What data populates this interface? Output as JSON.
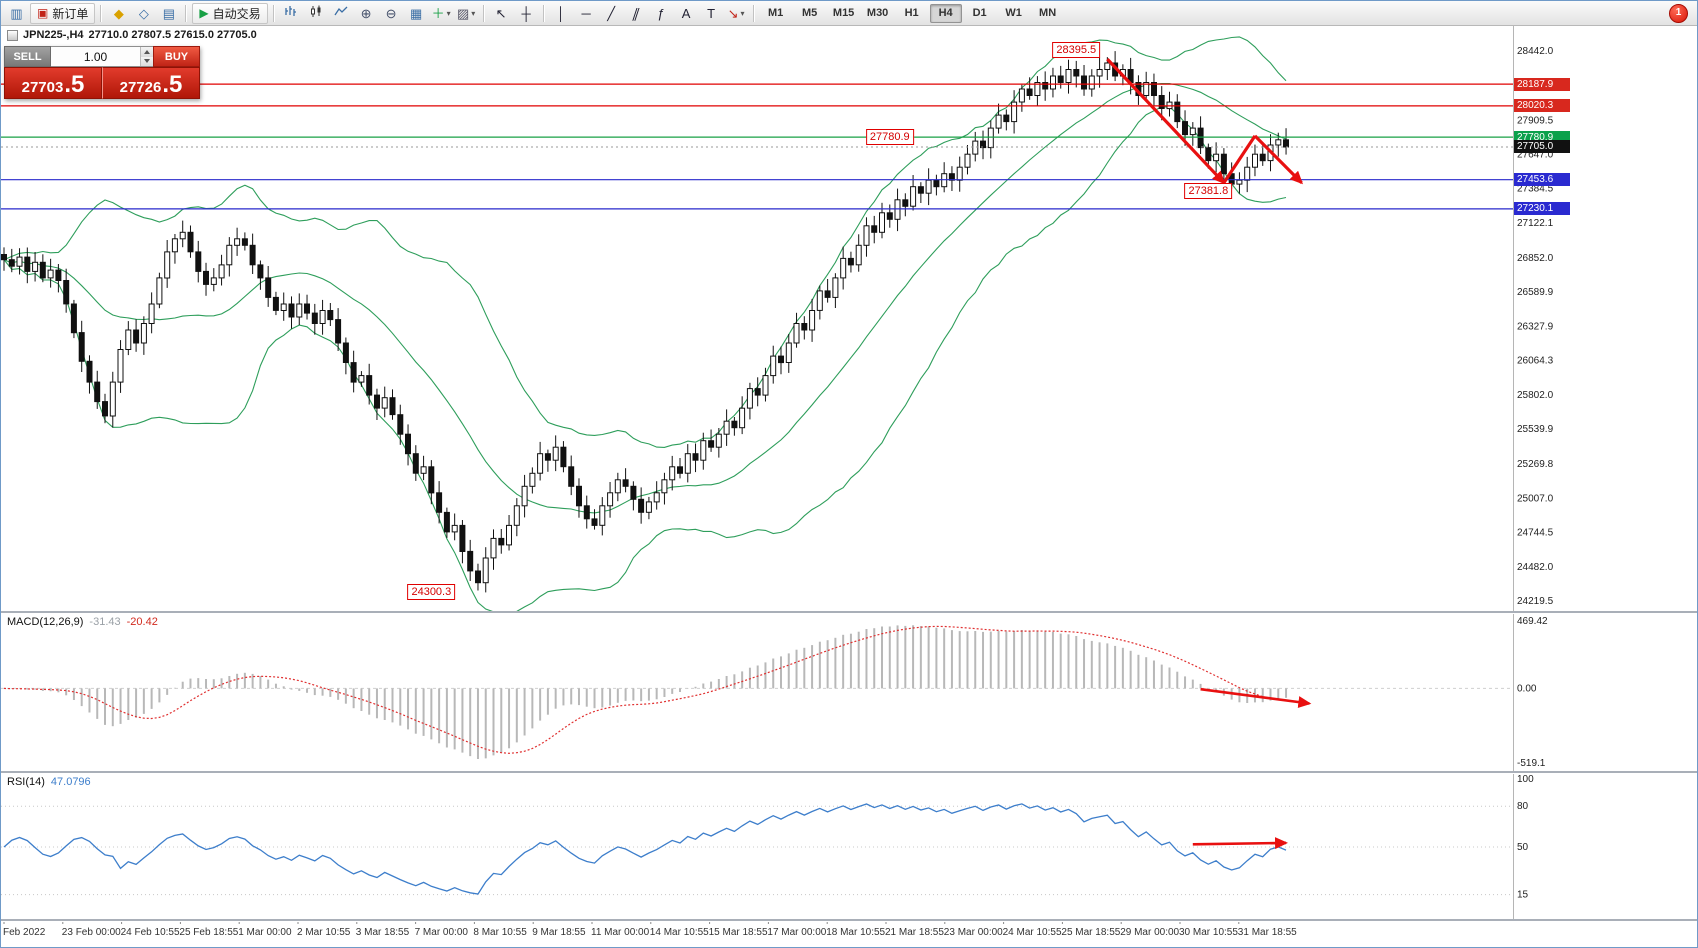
{
  "toolbar": {
    "groups": [
      {
        "name": "file",
        "items": [
          {
            "name": "new-chart",
            "glyph": "▥",
            "color": "#3a6ea5"
          },
          {
            "name": "new-order",
            "label": "新订单",
            "glyph": "▣",
            "color": "#c22318"
          }
        ]
      },
      {
        "name": "panels",
        "items": [
          {
            "name": "market-watch",
            "glyph": "◆",
            "color": "#d9a100"
          },
          {
            "name": "navigator",
            "glyph": "◇",
            "color": "#3a6ea5"
          },
          {
            "name": "terminal",
            "glyph": "▤",
            "color": "#3a6ea5"
          }
        ]
      },
      {
        "name": "autotrade",
        "items": [
          {
            "name": "autotrade",
            "label": "自动交易",
            "glyph": "▶",
            "color": "#18a045"
          }
        ]
      },
      {
        "name": "chart-tools",
        "items": [
          {
            "name": "bar-chart",
            "svg": "bars"
          },
          {
            "name": "candlestick-chart",
            "svg": "candles"
          },
          {
            "name": "line-chart",
            "svg": "line"
          },
          {
            "name": "zoom-in",
            "glyph": "⊕",
            "color": "#44506a"
          },
          {
            "name": "zoom-out",
            "glyph": "⊖",
            "color": "#44506a"
          },
          {
            "name": "tile-windows",
            "glyph": "▦",
            "color": "#3a6ea5"
          },
          {
            "name": "indicators",
            "glyph": "＋",
            "color": "#18a045",
            "caret": true
          },
          {
            "name": "templates",
            "glyph": "▨",
            "color": "#556",
            "caret": true
          }
        ]
      },
      {
        "name": "cursor-tools",
        "items": [
          {
            "name": "cursor",
            "glyph": "↖",
            "color": "#223"
          },
          {
            "name": "crosshair",
            "glyph": "┼",
            "color": "#223"
          }
        ]
      },
      {
        "name": "line-tools",
        "items": [
          {
            "name": "vertical-line",
            "glyph": "│",
            "color": "#223"
          },
          {
            "name": "horizontal-line",
            "glyph": "─",
            "color": "#223"
          },
          {
            "name": "trendline",
            "glyph": "╱",
            "color": "#223"
          },
          {
            "name": "equidistant-channel",
            "glyph": "∥",
            "color": "#223",
            "slant": true
          },
          {
            "name": "fibonacci",
            "glyph": "ƒ",
            "color": "#223"
          },
          {
            "name": "text",
            "glyph": "A",
            "color": "#223"
          },
          {
            "name": "label",
            "glyph": "T",
            "color": "#223"
          },
          {
            "name": "arrow-tool",
            "glyph": "↘",
            "color": "#c22318",
            "caret": true
          }
        ]
      },
      {
        "name": "timeframes",
        "type": "timeframes"
      }
    ],
    "timeframes": [
      "M1",
      "M5",
      "M15",
      "M30",
      "H1",
      "H4",
      "D1",
      "W1",
      "MN"
    ],
    "active_timeframe": "H4",
    "notification_badge": "1"
  },
  "trade_panel": {
    "sell_label": "SELL",
    "buy_label": "BUY",
    "volume": "1.00",
    "sell_price_main": "27703",
    "sell_price_frac": ".5",
    "buy_price_main": "27726",
    "buy_price_frac": ".5"
  },
  "chart_header": {
    "symbol": "JPN225-,H4",
    "ohlc": "27710.0 27807.5 27615.0 27705.0"
  },
  "chart_data": {
    "type": "candlestick",
    "symbol": "JPN225-",
    "timeframe": "H4",
    "price_axis": {
      "top_value": 28442.0,
      "bottom_value": 24219.5,
      "ticks": [
        "28442.0",
        "27909.5",
        "27647.0",
        "27384.5",
        "27122.1",
        "26852.0",
        "26589.9",
        "26327.9",
        "26064.3",
        "25802.0",
        "25539.9",
        "25269.8",
        "25007.0",
        "24744.5",
        "24482.0",
        "24219.5"
      ]
    },
    "candles": {
      "first_open": 26880,
      "bull_color": "#ffffff",
      "bear_color": "#111111",
      "outline": "#111111",
      "wick_amplitude": 110,
      "wick_overrides": {
        "61": {
          "low": 24300.3
        },
        "142": {
          "high": 28395.5
        },
        "158": {
          "low": 27381.8
        }
      },
      "closes": [
        26840,
        26790,
        26860,
        26750,
        26820,
        26700,
        26760,
        26680,
        26500,
        26280,
        26060,
        25900,
        25750,
        25640,
        25900,
        26150,
        26300,
        26200,
        26350,
        26500,
        26700,
        26900,
        27000,
        27050,
        26900,
        26750,
        26650,
        26700,
        26800,
        26950,
        27000,
        26950,
        26800,
        26700,
        26550,
        26450,
        26500,
        26400,
        26500,
        26430,
        26350,
        26450,
        26380,
        26200,
        26050,
        25900,
        25950,
        25800,
        25700,
        25780,
        25650,
        25500,
        25350,
        25200,
        25250,
        25050,
        24900,
        24750,
        24800,
        24600,
        24450,
        24360,
        24550,
        24700,
        24650,
        24800,
        24950,
        25100,
        25200,
        25350,
        25300,
        25400,
        25250,
        25100,
        24950,
        24850,
        24800,
        24950,
        25050,
        25150,
        25100,
        25000,
        24900,
        24980,
        25050,
        25150,
        25250,
        25200,
        25350,
        25300,
        25450,
        25400,
        25500,
        25600,
        25550,
        25700,
        25850,
        25800,
        25950,
        26100,
        26050,
        26200,
        26350,
        26300,
        26450,
        26600,
        26550,
        26700,
        26850,
        26800,
        26950,
        27100,
        27050,
        27200,
        27150,
        27300,
        27250,
        27400,
        27350,
        27450,
        27400,
        27500,
        27450,
        27550,
        27650,
        27750,
        27700,
        27850,
        27950,
        27900,
        28050,
        28150,
        28100,
        28200,
        28150,
        28250,
        28200,
        28300,
        28250,
        28150,
        28250,
        28300,
        28350,
        28250,
        28300,
        28200,
        28100,
        28200,
        28100,
        28000,
        28050,
        27900,
        27800,
        27850,
        27700,
        27600,
        27650,
        27500,
        27420,
        27450,
        27550,
        27650,
        27600,
        27720,
        27760,
        27705
      ]
    },
    "bollinger": {
      "period": 20,
      "deviation": 2,
      "color": "#2e9e5b"
    },
    "hlines": [
      {
        "price": 28187.9,
        "label": "28187.9",
        "line_color": "#e00000",
        "badge_color": "#d8281e"
      },
      {
        "price": 28020.3,
        "label": "28020.3",
        "line_color": "#e00000",
        "badge_color": "#d8281e"
      },
      {
        "price": 27780.9,
        "label": "27780.9",
        "line_color": "#18a045",
        "badge_color": "#0ba14b"
      },
      {
        "price": 27453.6,
        "label": "27453.6",
        "line_color": "#2828cc",
        "badge_color": "#2a2ad0"
      },
      {
        "price": 27230.1,
        "label": "27230.1",
        "line_color": "#2828cc",
        "badge_color": "#2a2ad0"
      }
    ],
    "current_price": {
      "price": 27705.0,
      "label": "27705.0",
      "badge_color": "#111111"
    },
    "callouts": [
      {
        "text": "28395.5",
        "bar": 138,
        "price": 28450
      },
      {
        "text": "27780.9",
        "bar": 114,
        "price": 27780.9
      },
      {
        "text": "27381.8",
        "bar": 155,
        "price": 27370
      },
      {
        "text": "24300.3",
        "bar": 55,
        "price": 24290
      }
    ],
    "arrows": {
      "color": "#e81010",
      "main": [
        {
          "from": {
            "bar": 142,
            "price": 28380
          },
          "to": {
            "bar": 157,
            "price": 27430
          },
          "head": true
        },
        {
          "from": {
            "bar": 157,
            "price": 27430
          },
          "to": {
            "bar": 161,
            "price": 27790
          },
          "head": false
        },
        {
          "from": {
            "bar": 161,
            "price": 27790
          },
          "to": {
            "bar": 167,
            "price": 27430
          },
          "head": true
        }
      ],
      "macd": [
        {
          "from": {
            "bar": 154,
            "value": -5
          },
          "to": {
            "bar": 168,
            "value": -105
          },
          "head": true
        }
      ],
      "rsi": [
        {
          "from": {
            "bar": 153,
            "value": 52
          },
          "to": {
            "bar": 165,
            "value": 53
          },
          "head": true
        }
      ]
    },
    "time_axis": [
      "Feb 2022",
      "23 Feb 00:00",
      "24 Feb 10:55",
      "25 Feb 18:55",
      "1 Mar 00:00",
      "2 Mar 10:55",
      "3 Mar 18:55",
      "7 Mar 00:00",
      "8 Mar 10:55",
      "9 Mar 18:55",
      "11 Mar 00:00",
      "14 Mar 10:55",
      "15 Mar 18:55",
      "17 Mar 00:00",
      "18 Mar 10:55",
      "21 Mar 18:55",
      "23 Mar 00:00",
      "24 Mar 10:55",
      "25 Mar 18:55",
      "29 Mar 00:00",
      "30 Mar 10:55",
      "31 Mar 18:55"
    ],
    "macd": {
      "name": "MACD(12,26,9)",
      "main_value": "-31.43",
      "signal_value": "-20.42",
      "fast": 12,
      "slow": 26,
      "signal_period": 9,
      "max": 469.42,
      "min": -519.1,
      "axis": [
        {
          "text": "469.42",
          "value": 469.42
        },
        {
          "text": "0.00",
          "value": 0
        },
        {
          "text": "-519.1",
          "value": -519.1
        }
      ],
      "histogram_color": "#b8b8b8",
      "signal_color": "#e03030"
    },
    "rsi": {
      "name": "RSI(14)",
      "value": "47.0796",
      "period": 14,
      "color": "#3d7ecb",
      "levels": [
        80,
        50,
        15
      ],
      "axis": [
        {
          "text": "100",
          "value": 100
        },
        {
          "text": "80",
          "value": 80
        },
        {
          "text": "50",
          "value": 50
        },
        {
          "text": "15",
          "value": 15
        }
      ]
    }
  }
}
